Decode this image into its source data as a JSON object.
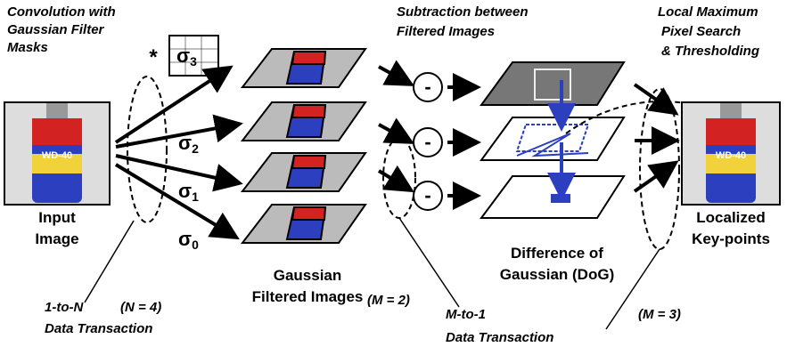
{
  "header": {
    "lines": [
      "Convolution with",
      "Gaussian Filter",
      "Masks"
    ]
  },
  "convolution": {
    "operator": "*",
    "sigmas": [
      {
        "symbol": "σ",
        "index": "3"
      },
      {
        "symbol": "σ",
        "index": "2"
      },
      {
        "symbol": "σ",
        "index": "1"
      },
      {
        "symbol": "σ",
        "index": "0"
      }
    ]
  },
  "input": {
    "image_text": "WD-40",
    "lines": [
      "Input",
      "Image"
    ]
  },
  "gaussian": {
    "lines": [
      "Gaussian",
      "Filtered Images"
    ]
  },
  "subtraction": {
    "lines": [
      "Subtraction between",
      "Filtered Images"
    ],
    "operator": "-"
  },
  "dog": {
    "lines": [
      "Difference of",
      "Gaussian (DoG)"
    ]
  },
  "search": {
    "lines": [
      "Local Maximum",
      "Pixel Search",
      "& Thresholding"
    ]
  },
  "output": {
    "image_text": "WD-40",
    "lines": [
      "Localized",
      "Key-points"
    ]
  },
  "notes": {
    "one_to_n": "1-to-N",
    "n": "(N = 4)",
    "one_to_n_sub": "Data Transaction",
    "m2": "(M = 2)",
    "m_to_one": "M-to-1",
    "m_to_one_sub": "Data Transaction",
    "m3": "(M = 3)"
  }
}
